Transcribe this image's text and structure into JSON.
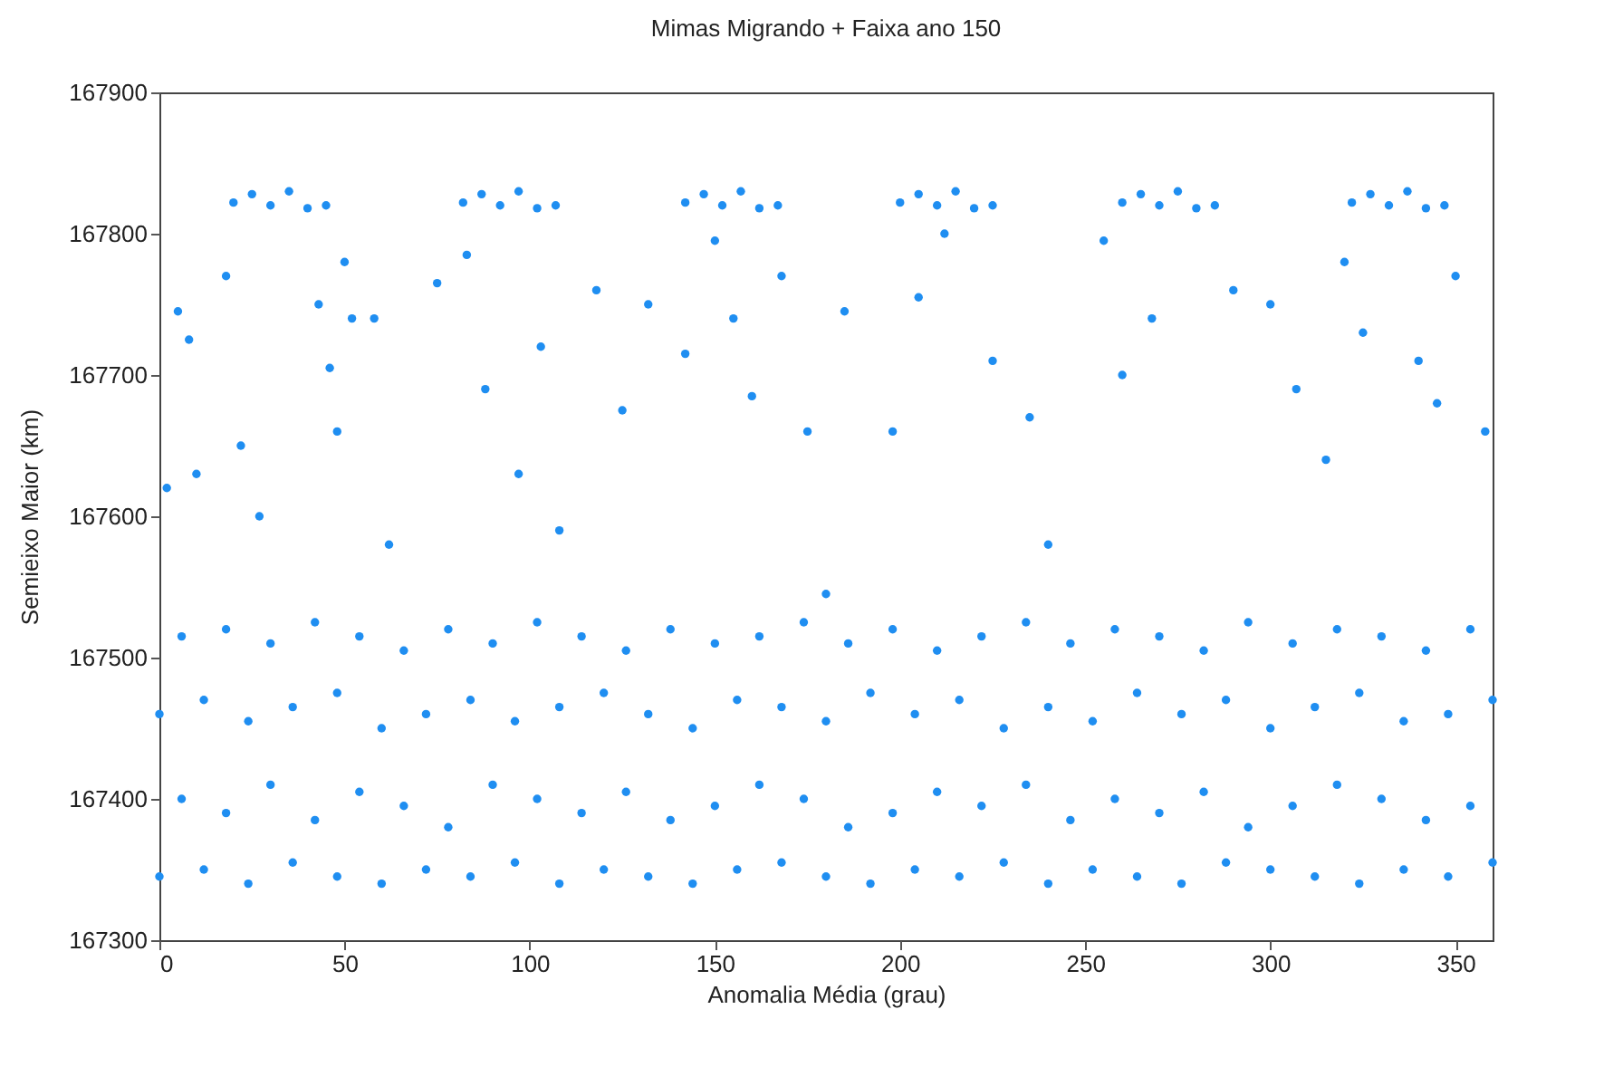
{
  "chart_data": {
    "type": "scatter",
    "title": "Mimas Migrando + Faixa ano 150",
    "xlabel": "Anomalia Média (grau)",
    "ylabel": "Semieixo Maior (km)",
    "xlim": [
      0,
      360
    ],
    "xticks": [
      0,
      50,
      100,
      150,
      200,
      250,
      300,
      350
    ],
    "ylim": [
      167300,
      167900
    ],
    "yticks": [
      167300,
      167400,
      167500,
      167600,
      167700,
      167800,
      167900
    ],
    "grid": false,
    "marker": "circle",
    "series": [
      {
        "color": "#1f8ef1",
        "x": [
          0,
          12,
          24,
          36,
          48,
          60,
          72,
          84,
          96,
          108,
          120,
          132,
          144,
          156,
          168,
          180,
          192,
          204,
          216,
          228,
          240,
          252,
          264,
          276,
          288,
          300,
          312,
          324,
          336,
          348,
          360,
          6,
          18,
          30,
          42,
          54,
          66,
          78,
          90,
          102,
          114,
          126,
          138,
          150,
          162,
          174,
          186,
          198,
          210,
          222,
          234,
          246,
          258,
          270,
          282,
          294,
          306,
          318,
          330,
          342,
          354,
          0,
          12,
          24,
          36,
          48,
          60,
          72,
          84,
          96,
          108,
          120,
          132,
          144,
          156,
          168,
          180,
          192,
          204,
          216,
          228,
          240,
          252,
          264,
          276,
          288,
          300,
          312,
          324,
          336,
          348,
          360,
          6,
          18,
          30,
          42,
          54,
          66,
          78,
          90,
          102,
          114,
          126,
          138,
          150,
          162,
          174,
          186,
          198,
          210,
          222,
          234,
          246,
          258,
          270,
          282,
          294,
          306,
          318,
          330,
          342,
          354,
          20,
          25,
          30,
          35,
          40,
          45,
          82,
          87,
          92,
          97,
          102,
          107,
          142,
          147,
          152,
          157,
          162,
          167,
          200,
          205,
          210,
          215,
          220,
          225,
          260,
          265,
          270,
          275,
          280,
          285,
          322,
          327,
          332,
          337,
          342,
          347,
          2,
          5,
          8,
          10,
          18,
          22,
          27,
          43,
          46,
          48,
          50,
          52,
          58,
          62,
          75,
          83,
          88,
          97,
          103,
          108,
          118,
          125,
          132,
          142,
          150,
          155,
          160,
          168,
          175,
          180,
          185,
          198,
          205,
          212,
          225,
          235,
          240,
          255,
          260,
          268,
          290,
          300,
          307,
          315,
          320,
          325,
          340,
          345,
          350,
          358
        ],
        "values": [
          167345,
          167350,
          167340,
          167355,
          167345,
          167340,
          167350,
          167345,
          167355,
          167340,
          167350,
          167345,
          167340,
          167350,
          167355,
          167345,
          167340,
          167350,
          167345,
          167355,
          167340,
          167350,
          167345,
          167340,
          167355,
          167350,
          167345,
          167340,
          167350,
          167345,
          167355,
          167400,
          167390,
          167410,
          167385,
          167405,
          167395,
          167380,
          167410,
          167400,
          167390,
          167405,
          167385,
          167395,
          167410,
          167400,
          167380,
          167390,
          167405,
          167395,
          167410,
          167385,
          167400,
          167390,
          167405,
          167380,
          167395,
          167410,
          167400,
          167385,
          167395,
          167460,
          167470,
          167455,
          167465,
          167475,
          167450,
          167460,
          167470,
          167455,
          167465,
          167475,
          167460,
          167450,
          167470,
          167465,
          167455,
          167475,
          167460,
          167470,
          167450,
          167465,
          167455,
          167475,
          167460,
          167470,
          167450,
          167465,
          167475,
          167455,
          167460,
          167470,
          167515,
          167520,
          167510,
          167525,
          167515,
          167505,
          167520,
          167510,
          167525,
          167515,
          167505,
          167520,
          167510,
          167515,
          167525,
          167510,
          167520,
          167505,
          167515,
          167525,
          167510,
          167520,
          167515,
          167505,
          167525,
          167510,
          167520,
          167515,
          167505,
          167520,
          167822,
          167828,
          167820,
          167830,
          167818,
          167820,
          167822,
          167828,
          167820,
          167830,
          167818,
          167820,
          167822,
          167828,
          167820,
          167830,
          167818,
          167820,
          167822,
          167828,
          167820,
          167830,
          167818,
          167820,
          167822,
          167828,
          167820,
          167830,
          167818,
          167820,
          167822,
          167828,
          167820,
          167830,
          167818,
          167820,
          167620,
          167745,
          167725,
          167630,
          167770,
          167650,
          167600,
          167750,
          167705,
          167660,
          167780,
          167740,
          167740,
          167580,
          167765,
          167785,
          167690,
          167630,
          167720,
          167590,
          167760,
          167675,
          167750,
          167715,
          167795,
          167740,
          167685,
          167770,
          167660,
          167545,
          167745,
          167660,
          167755,
          167800,
          167710,
          167670,
          167580,
          167795,
          167700,
          167740,
          167760,
          167750,
          167690,
          167640,
          167780,
          167730,
          167710,
          167680,
          167770,
          167660
        ]
      }
    ]
  }
}
